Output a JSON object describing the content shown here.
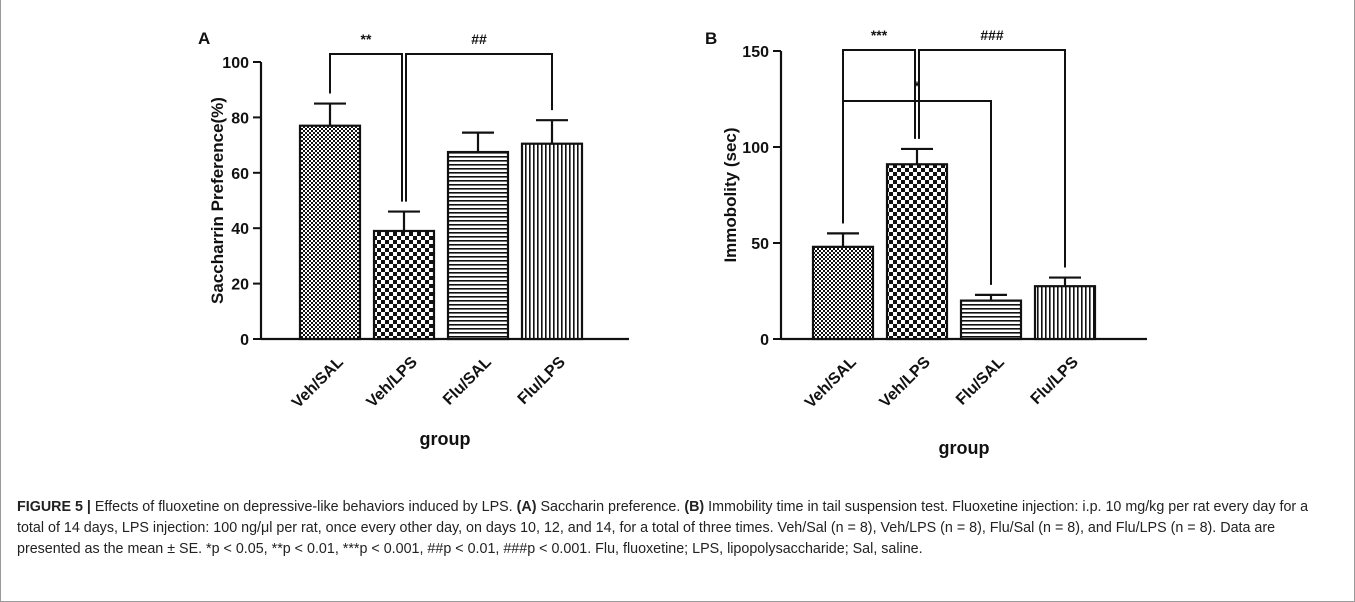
{
  "chart_data": [
    {
      "panel": "A",
      "type": "bar",
      "categories": [
        "Veh/SAL",
        "Veh/LPS",
        "Flu/SAL",
        "Flu/LPS"
      ],
      "values": [
        77,
        39,
        67.5,
        70.5
      ],
      "errors": [
        8,
        7,
        7,
        8.5
      ],
      "patterns": [
        "dense-check",
        "check",
        "horizontal",
        "vertical"
      ],
      "xlabel": "group",
      "ylabel": "Saccharrin Preference(%)",
      "ylim": [
        0,
        100
      ],
      "yticks": [
        0,
        20,
        40,
        60,
        80,
        100
      ],
      "significance": [
        {
          "from": 0,
          "to": 1,
          "label": "**"
        },
        {
          "from": 1,
          "to": 3,
          "label": "##"
        }
      ]
    },
    {
      "panel": "B",
      "type": "bar",
      "categories": [
        "Veh/SAL",
        "Veh/LPS",
        "Flu/SAL",
        "Flu/LPS"
      ],
      "values": [
        48,
        91,
        20,
        27.5
      ],
      "errors": [
        7,
        8,
        3,
        4.5
      ],
      "patterns": [
        "dense-check",
        "check",
        "horizontal",
        "vertical"
      ],
      "xlabel": "group",
      "ylabel": "Immobolity (sec)",
      "ylim": [
        0,
        150
      ],
      "yticks": [
        0,
        50,
        100,
        150
      ],
      "significance": [
        {
          "from": 0,
          "to": 1,
          "label": "***"
        },
        {
          "from": 1,
          "to": 3,
          "label": "###"
        },
        {
          "from": 0,
          "to": 2,
          "label": "*"
        }
      ]
    }
  ],
  "caption": {
    "figure_label": "FIGURE 5 |",
    "lead": " Effects of fluoxetine on depressive-like behaviors induced by LPS. ",
    "a_label": "(A)",
    "a_text": " Saccharin preference. ",
    "b_label": "(B)",
    "b_text": " Immobility time in tail suspension test. Fluoxetine injection: i.p. 10 mg/kg per rat every day for a total of 14 days, LPS injection: 100 ng/μl per rat, once every other day, on days 10, 12, and 14, for a total of three times. Veh/Sal (n = 8), Veh/LPS (n = 8), Flu/Sal (n = 8), and Flu/LPS (n = 8). Data are presented as the mean ± SE. *p < 0.05, **p < 0.01, ***p < 0.001, ##p < 0.01, ###p < 0.001. Flu, fluoxetine; LPS, lipopolysaccharide; Sal, saline."
  }
}
